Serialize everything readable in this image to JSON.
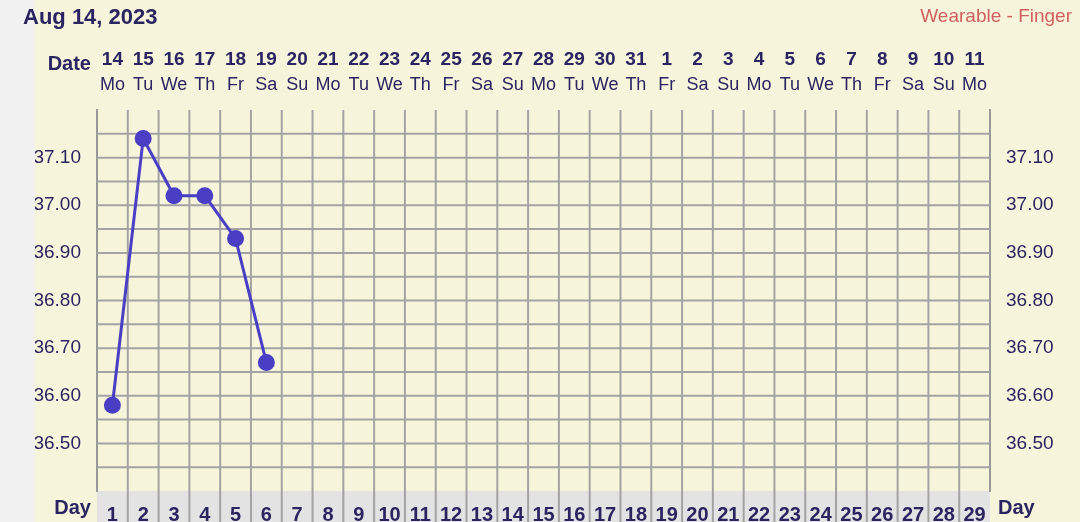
{
  "chart_data": {
    "type": "line",
    "title": "Aug 14, 2023",
    "annotations": [
      "Wearable - Finger"
    ],
    "xlabel": "Day",
    "x2label": "Date",
    "x": [
      1,
      2,
      3,
      4,
      5,
      6
    ],
    "series": [
      {
        "color": "#4a3ec4",
        "values": [
          36.58,
          37.14,
          37.02,
          37.02,
          36.93,
          36.67
        ]
      }
    ],
    "marker": "circle",
    "line_style": "solid",
    "grid": true,
    "xlim": [
      0.5,
      29.5
    ],
    "xticks": [
      1,
      2,
      3,
      4,
      5,
      6,
      7,
      8,
      9,
      10,
      11,
      12,
      13,
      14,
      15,
      16,
      17,
      18,
      19,
      20,
      21,
      22,
      23,
      24,
      25,
      26,
      27,
      28,
      29
    ],
    "x2lim": [
      "2023-08-13T12:00",
      "2023-09-11T12:00"
    ],
    "x2ticks": [
      {
        "value": "2023-08-14",
        "label": "14\nMo"
      },
      {
        "value": "2023-08-15",
        "label": "15\nTu"
      },
      {
        "value": "2023-08-16",
        "label": "16\nWe"
      },
      {
        "value": "2023-08-17",
        "label": "17\nTh"
      },
      {
        "value": "2023-08-18",
        "label": "18\nFr"
      },
      {
        "value": "2023-08-19",
        "label": "19\nSa"
      },
      {
        "value": "2023-08-20",
        "label": "20\nSu"
      },
      {
        "value": "2023-08-21",
        "label": "21\nMo"
      },
      {
        "value": "2023-08-22",
        "label": "22\nTu"
      },
      {
        "value": "2023-08-23",
        "label": "23\nWe"
      },
      {
        "value": "2023-08-24",
        "label": "24\nTh"
      },
      {
        "value": "2023-08-25",
        "label": "25\nFr"
      },
      {
        "value": "2023-08-26",
        "label": "26\nSa"
      },
      {
        "value": "2023-08-27",
        "label": "27\nSu"
      },
      {
        "value": "2023-08-28",
        "label": "28\nMo"
      },
      {
        "value": "2023-08-29",
        "label": "29\nTu"
      },
      {
        "value": "2023-08-30",
        "label": "30\nWe"
      },
      {
        "value": "2023-08-31",
        "label": "31\nTh"
      },
      {
        "value": "2023-09-01",
        "label": "1\nFr"
      },
      {
        "value": "2023-09-02",
        "label": "2\nSa"
      },
      {
        "value": "2023-09-03",
        "label": "3\nSu"
      },
      {
        "value": "2023-09-04",
        "label": "4\nMo"
      },
      {
        "value": "2023-09-05",
        "label": "5\nTu"
      },
      {
        "value": "2023-09-06",
        "label": "6\nWe"
      },
      {
        "value": "2023-09-07",
        "label": "7\nTh"
      },
      {
        "value": "2023-09-08",
        "label": "8\nFr"
      },
      {
        "value": "2023-09-09",
        "label": "9\nSa"
      },
      {
        "value": "2023-09-10",
        "label": "10\nSu"
      },
      {
        "value": "2023-09-11",
        "label": "11\nMo"
      }
    ],
    "ylim": [
      36.4,
      37.2
    ],
    "yticks": [
      {
        "value": 36.45,
        "label": null
      },
      {
        "value": 36.5,
        "label": "36.50"
      },
      {
        "value": 36.55,
        "label": null
      },
      {
        "value": 36.6,
        "label": "36.60"
      },
      {
        "value": 36.65,
        "label": null
      },
      {
        "value": 36.7,
        "label": "36.70"
      },
      {
        "value": 36.75,
        "label": null
      },
      {
        "value": 36.8,
        "label": "36.80"
      },
      {
        "value": 36.85,
        "label": null
      },
      {
        "value": 36.9,
        "label": "36.90"
      },
      {
        "value": 36.95,
        "label": null
      },
      {
        "value": 37,
        "label": "37.00"
      },
      {
        "value": 37.05,
        "label": null
      },
      {
        "value": 37.1,
        "label": "37.10"
      },
      {
        "value": 37.15,
        "label": null
      }
    ],
    "y2lim": [
      36.4,
      37.2
    ],
    "y2ticks": [
      {
        "value": 36.45,
        "label": null
      },
      {
        "value": 36.5,
        "label": "36.50"
      },
      {
        "value": 36.55,
        "label": null
      },
      {
        "value": 36.6,
        "label": "36.60"
      },
      {
        "value": 36.65,
        "label": null
      },
      {
        "value": 36.7,
        "label": "36.70"
      },
      {
        "value": 36.75,
        "label": null
      },
      {
        "value": 36.8,
        "label": "36.80"
      },
      {
        "value": 36.85,
        "label": null
      },
      {
        "value": 36.9,
        "label": "36.90"
      },
      {
        "value": 36.95,
        "label": null
      },
      {
        "value": 37,
        "label": "37.00"
      },
      {
        "value": 37.05,
        "label": null
      },
      {
        "value": 37.1,
        "label": "37.10"
      },
      {
        "value": 37.15,
        "label": null
      }
    ]
  }
}
